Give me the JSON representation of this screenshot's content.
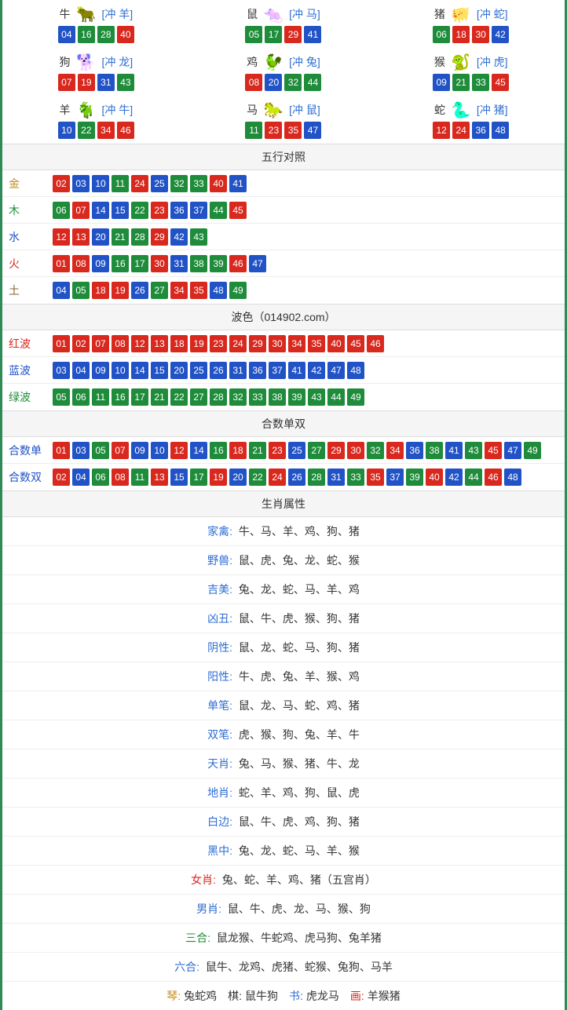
{
  "colors": {
    "red": "#d9281e",
    "green": "#1e8c3a",
    "blue": "#2253c6",
    "border": "#2e8b57",
    "link": "#2e6dd3",
    "gold": "#c08d1e",
    "earth": "#8a632e"
  },
  "ball_style": {
    "width": 22,
    "height": 22,
    "fontsize": 12,
    "radius": 2,
    "text_color": "#ffffff"
  },
  "zodiac_icons": {
    "牛": {
      "emoji": "🐂",
      "hue": 20
    },
    "鼠": {
      "emoji": "🐀",
      "hue": 200
    },
    "猪": {
      "emoji": "🐖",
      "hue": 330
    },
    "狗": {
      "emoji": "🐕",
      "hue": 200
    },
    "鸡": {
      "emoji": "🐓",
      "hue": 40
    },
    "猴": {
      "emoji": "🐒",
      "hue": 25
    },
    "羊": {
      "emoji": "🐐",
      "hue": 45
    },
    "马": {
      "emoji": "🐎",
      "hue": 15
    },
    "蛇": {
      "emoji": "🐍",
      "hue": 100
    }
  },
  "zodiac": [
    {
      "name": "牛",
      "chong": "[冲 羊]",
      "balls": [
        {
          "n": "04",
          "c": "blue"
        },
        {
          "n": "16",
          "c": "green"
        },
        {
          "n": "28",
          "c": "green"
        },
        {
          "n": "40",
          "c": "red"
        }
      ]
    },
    {
      "name": "鼠",
      "chong": "[冲 马]",
      "balls": [
        {
          "n": "05",
          "c": "green"
        },
        {
          "n": "17",
          "c": "green"
        },
        {
          "n": "29",
          "c": "red"
        },
        {
          "n": "41",
          "c": "blue"
        }
      ]
    },
    {
      "name": "猪",
      "chong": "[冲 蛇]",
      "balls": [
        {
          "n": "06",
          "c": "green"
        },
        {
          "n": "18",
          "c": "red"
        },
        {
          "n": "30",
          "c": "red"
        },
        {
          "n": "42",
          "c": "blue"
        }
      ]
    },
    {
      "name": "狗",
      "chong": "[冲 龙]",
      "balls": [
        {
          "n": "07",
          "c": "red"
        },
        {
          "n": "19",
          "c": "red"
        },
        {
          "n": "31",
          "c": "blue"
        },
        {
          "n": "43",
          "c": "green"
        }
      ]
    },
    {
      "name": "鸡",
      "chong": "[冲 兔]",
      "balls": [
        {
          "n": "08",
          "c": "red"
        },
        {
          "n": "20",
          "c": "blue"
        },
        {
          "n": "32",
          "c": "green"
        },
        {
          "n": "44",
          "c": "green"
        }
      ]
    },
    {
      "name": "猴",
      "chong": "[冲 虎]",
      "balls": [
        {
          "n": "09",
          "c": "blue"
        },
        {
          "n": "21",
          "c": "green"
        },
        {
          "n": "33",
          "c": "green"
        },
        {
          "n": "45",
          "c": "red"
        }
      ]
    },
    {
      "name": "羊",
      "chong": "[冲 牛]",
      "balls": [
        {
          "n": "10",
          "c": "blue"
        },
        {
          "n": "22",
          "c": "green"
        },
        {
          "n": "34",
          "c": "red"
        },
        {
          "n": "46",
          "c": "red"
        }
      ]
    },
    {
      "name": "马",
      "chong": "[冲 鼠]",
      "balls": [
        {
          "n": "11",
          "c": "green"
        },
        {
          "n": "23",
          "c": "red"
        },
        {
          "n": "35",
          "c": "red"
        },
        {
          "n": "47",
          "c": "blue"
        }
      ]
    },
    {
      "name": "蛇",
      "chong": "[冲 猪]",
      "balls": [
        {
          "n": "12",
          "c": "red"
        },
        {
          "n": "24",
          "c": "red"
        },
        {
          "n": "36",
          "c": "blue"
        },
        {
          "n": "48",
          "c": "blue"
        }
      ]
    }
  ],
  "wuxing_header": "五行对照",
  "wuxing": [
    {
      "label": "金",
      "cls": "gold",
      "balls": [
        {
          "n": "02",
          "c": "red"
        },
        {
          "n": "03",
          "c": "blue"
        },
        {
          "n": "10",
          "c": "blue"
        },
        {
          "n": "11",
          "c": "green"
        },
        {
          "n": "24",
          "c": "red"
        },
        {
          "n": "25",
          "c": "blue"
        },
        {
          "n": "32",
          "c": "green"
        },
        {
          "n": "33",
          "c": "green"
        },
        {
          "n": "40",
          "c": "red"
        },
        {
          "n": "41",
          "c": "blue"
        }
      ]
    },
    {
      "label": "木",
      "cls": "wood",
      "balls": [
        {
          "n": "06",
          "c": "green"
        },
        {
          "n": "07",
          "c": "red"
        },
        {
          "n": "14",
          "c": "blue"
        },
        {
          "n": "15",
          "c": "blue"
        },
        {
          "n": "22",
          "c": "green"
        },
        {
          "n": "23",
          "c": "red"
        },
        {
          "n": "36",
          "c": "blue"
        },
        {
          "n": "37",
          "c": "blue"
        },
        {
          "n": "44",
          "c": "green"
        },
        {
          "n": "45",
          "c": "red"
        }
      ]
    },
    {
      "label": "水",
      "cls": "water",
      "balls": [
        {
          "n": "12",
          "c": "red"
        },
        {
          "n": "13",
          "c": "red"
        },
        {
          "n": "20",
          "c": "blue"
        },
        {
          "n": "21",
          "c": "green"
        },
        {
          "n": "28",
          "c": "green"
        },
        {
          "n": "29",
          "c": "red"
        },
        {
          "n": "42",
          "c": "blue"
        },
        {
          "n": "43",
          "c": "green"
        }
      ]
    },
    {
      "label": "火",
      "cls": "fire",
      "balls": [
        {
          "n": "01",
          "c": "red"
        },
        {
          "n": "08",
          "c": "red"
        },
        {
          "n": "09",
          "c": "blue"
        },
        {
          "n": "16",
          "c": "green"
        },
        {
          "n": "17",
          "c": "green"
        },
        {
          "n": "30",
          "c": "red"
        },
        {
          "n": "31",
          "c": "blue"
        },
        {
          "n": "38",
          "c": "green"
        },
        {
          "n": "39",
          "c": "green"
        },
        {
          "n": "46",
          "c": "red"
        },
        {
          "n": "47",
          "c": "blue"
        }
      ]
    },
    {
      "label": "土",
      "cls": "earth",
      "balls": [
        {
          "n": "04",
          "c": "blue"
        },
        {
          "n": "05",
          "c": "green"
        },
        {
          "n": "18",
          "c": "red"
        },
        {
          "n": "19",
          "c": "red"
        },
        {
          "n": "26",
          "c": "blue"
        },
        {
          "n": "27",
          "c": "green"
        },
        {
          "n": "34",
          "c": "red"
        },
        {
          "n": "35",
          "c": "red"
        },
        {
          "n": "48",
          "c": "blue"
        },
        {
          "n": "49",
          "c": "green"
        }
      ]
    }
  ],
  "bose_header": "波色（014902.com）",
  "bose": [
    {
      "label": "红波",
      "cls": "red",
      "balls": [
        {
          "n": "01",
          "c": "red"
        },
        {
          "n": "02",
          "c": "red"
        },
        {
          "n": "07",
          "c": "red"
        },
        {
          "n": "08",
          "c": "red"
        },
        {
          "n": "12",
          "c": "red"
        },
        {
          "n": "13",
          "c": "red"
        },
        {
          "n": "18",
          "c": "red"
        },
        {
          "n": "19",
          "c": "red"
        },
        {
          "n": "23",
          "c": "red"
        },
        {
          "n": "24",
          "c": "red"
        },
        {
          "n": "29",
          "c": "red"
        },
        {
          "n": "30",
          "c": "red"
        },
        {
          "n": "34",
          "c": "red"
        },
        {
          "n": "35",
          "c": "red"
        },
        {
          "n": "40",
          "c": "red"
        },
        {
          "n": "45",
          "c": "red"
        },
        {
          "n": "46",
          "c": "red"
        }
      ]
    },
    {
      "label": "蓝波",
      "cls": "blue",
      "balls": [
        {
          "n": "03",
          "c": "blue"
        },
        {
          "n": "04",
          "c": "blue"
        },
        {
          "n": "09",
          "c": "blue"
        },
        {
          "n": "10",
          "c": "blue"
        },
        {
          "n": "14",
          "c": "blue"
        },
        {
          "n": "15",
          "c": "blue"
        },
        {
          "n": "20",
          "c": "blue"
        },
        {
          "n": "25",
          "c": "blue"
        },
        {
          "n": "26",
          "c": "blue"
        },
        {
          "n": "31",
          "c": "blue"
        },
        {
          "n": "36",
          "c": "blue"
        },
        {
          "n": "37",
          "c": "blue"
        },
        {
          "n": "41",
          "c": "blue"
        },
        {
          "n": "42",
          "c": "blue"
        },
        {
          "n": "47",
          "c": "blue"
        },
        {
          "n": "48",
          "c": "blue"
        }
      ]
    },
    {
      "label": "绿波",
      "cls": "green",
      "balls": [
        {
          "n": "05",
          "c": "green"
        },
        {
          "n": "06",
          "c": "green"
        },
        {
          "n": "11",
          "c": "green"
        },
        {
          "n": "16",
          "c": "green"
        },
        {
          "n": "17",
          "c": "green"
        },
        {
          "n": "21",
          "c": "green"
        },
        {
          "n": "22",
          "c": "green"
        },
        {
          "n": "27",
          "c": "green"
        },
        {
          "n": "28",
          "c": "green"
        },
        {
          "n": "32",
          "c": "green"
        },
        {
          "n": "33",
          "c": "green"
        },
        {
          "n": "38",
          "c": "green"
        },
        {
          "n": "39",
          "c": "green"
        },
        {
          "n": "43",
          "c": "green"
        },
        {
          "n": "44",
          "c": "green"
        },
        {
          "n": "49",
          "c": "green"
        }
      ]
    }
  ],
  "heshu_header": "合数单双",
  "heshu": [
    {
      "label": "合数单",
      "cls": "blue",
      "balls": [
        {
          "n": "01",
          "c": "red"
        },
        {
          "n": "03",
          "c": "blue"
        },
        {
          "n": "05",
          "c": "green"
        },
        {
          "n": "07",
          "c": "red"
        },
        {
          "n": "09",
          "c": "blue"
        },
        {
          "n": "10",
          "c": "blue"
        },
        {
          "n": "12",
          "c": "red"
        },
        {
          "n": "14",
          "c": "blue"
        },
        {
          "n": "16",
          "c": "green"
        },
        {
          "n": "18",
          "c": "red"
        },
        {
          "n": "21",
          "c": "green"
        },
        {
          "n": "23",
          "c": "red"
        },
        {
          "n": "25",
          "c": "blue"
        },
        {
          "n": "27",
          "c": "green"
        },
        {
          "n": "29",
          "c": "red"
        },
        {
          "n": "30",
          "c": "red"
        },
        {
          "n": "32",
          "c": "green"
        },
        {
          "n": "34",
          "c": "red"
        },
        {
          "n": "36",
          "c": "blue"
        },
        {
          "n": "38",
          "c": "green"
        },
        {
          "n": "41",
          "c": "blue"
        },
        {
          "n": "43",
          "c": "green"
        },
        {
          "n": "45",
          "c": "red"
        },
        {
          "n": "47",
          "c": "blue"
        },
        {
          "n": "49",
          "c": "green"
        }
      ]
    },
    {
      "label": "合数双",
      "cls": "blue",
      "balls": [
        {
          "n": "02",
          "c": "red"
        },
        {
          "n": "04",
          "c": "blue"
        },
        {
          "n": "06",
          "c": "green"
        },
        {
          "n": "08",
          "c": "red"
        },
        {
          "n": "11",
          "c": "green"
        },
        {
          "n": "13",
          "c": "red"
        },
        {
          "n": "15",
          "c": "blue"
        },
        {
          "n": "17",
          "c": "green"
        },
        {
          "n": "19",
          "c": "red"
        },
        {
          "n": "20",
          "c": "blue"
        },
        {
          "n": "22",
          "c": "green"
        },
        {
          "n": "24",
          "c": "red"
        },
        {
          "n": "26",
          "c": "blue"
        },
        {
          "n": "28",
          "c": "green"
        },
        {
          "n": "31",
          "c": "blue"
        },
        {
          "n": "33",
          "c": "green"
        },
        {
          "n": "35",
          "c": "red"
        },
        {
          "n": "37",
          "c": "blue"
        },
        {
          "n": "39",
          "c": "green"
        },
        {
          "n": "40",
          "c": "red"
        },
        {
          "n": "42",
          "c": "blue"
        },
        {
          "n": "44",
          "c": "green"
        },
        {
          "n": "46",
          "c": "red"
        },
        {
          "n": "48",
          "c": "blue"
        }
      ]
    }
  ],
  "attr_header": "生肖属性",
  "attrs": [
    {
      "label": "家禽:",
      "cls": "",
      "value": "牛、马、羊、鸡、狗、猪"
    },
    {
      "label": "野兽:",
      "cls": "",
      "value": "鼠、虎、兔、龙、蛇、猴"
    },
    {
      "label": "吉美:",
      "cls": "",
      "value": "兔、龙、蛇、马、羊、鸡"
    },
    {
      "label": "凶丑:",
      "cls": "",
      "value": "鼠、牛、虎、猴、狗、猪"
    },
    {
      "label": "阴性:",
      "cls": "",
      "value": "鼠、龙、蛇、马、狗、猪"
    },
    {
      "label": "阳性:",
      "cls": "",
      "value": "牛、虎、兔、羊、猴、鸡"
    },
    {
      "label": "单笔:",
      "cls": "",
      "value": "鼠、龙、马、蛇、鸡、猪"
    },
    {
      "label": "双笔:",
      "cls": "",
      "value": "虎、猴、狗、兔、羊、牛"
    },
    {
      "label": "天肖:",
      "cls": "",
      "value": "兔、马、猴、猪、牛、龙"
    },
    {
      "label": "地肖:",
      "cls": "",
      "value": "蛇、羊、鸡、狗、鼠、虎"
    },
    {
      "label": "白边:",
      "cls": "",
      "value": "鼠、牛、虎、鸡、狗、猪"
    },
    {
      "label": "黑中:",
      "cls": "",
      "value": "兔、龙、蛇、马、羊、猴"
    },
    {
      "label": "女肖:",
      "cls": "red",
      "value": "兔、蛇、羊、鸡、猪（五宫肖）"
    },
    {
      "label": "男肖:",
      "cls": "",
      "value": "鼠、牛、虎、龙、马、猴、狗"
    },
    {
      "label": "三合:",
      "cls": "green",
      "value": "鼠龙猴、牛蛇鸡、虎马狗、兔羊猪"
    },
    {
      "label": "六合:",
      "cls": "",
      "value": "鼠牛、龙鸡、虎猪、蛇猴、兔狗、马羊"
    }
  ],
  "footer_row": [
    {
      "label": "琴:",
      "cls": "gold",
      "value": "兔蛇鸡"
    },
    {
      "label": "棋:",
      "cls": "black",
      "value": "鼠牛狗"
    },
    {
      "label": "书:",
      "cls": "",
      "value": "虎龙马"
    },
    {
      "label": "画:",
      "cls": "red",
      "value": "羊猴猪"
    }
  ]
}
